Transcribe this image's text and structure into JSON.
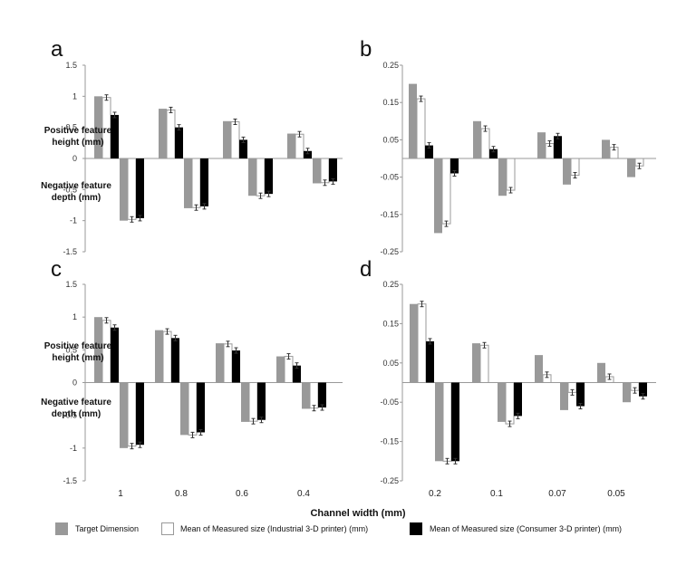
{
  "colors": {
    "target": "#999999",
    "industrial": "#ffffff",
    "consumer": "#000000",
    "axis": "#999999"
  },
  "chart_data": [
    {
      "panel": "a",
      "type": "bar",
      "ylim": [
        -1.5,
        1.5
      ],
      "yticks": [
        "1.5",
        "1",
        "0.5",
        "0",
        "-0.5",
        "-1",
        "-1.5"
      ],
      "categories": [
        "1",
        "0.8",
        "0.6",
        "0.4"
      ],
      "series": [
        {
          "name": "Target Dimension (positive)",
          "values": [
            1.0,
            0.8,
            0.6,
            0.4
          ]
        },
        {
          "name": "Industrial (positive)",
          "values": [
            0.98,
            0.78,
            0.59,
            0.39
          ]
        },
        {
          "name": "Consumer (positive)",
          "values": [
            0.7,
            0.5,
            0.3,
            0.12
          ]
        },
        {
          "name": "Target Dimension (negative)",
          "values": [
            -1.0,
            -0.8,
            -0.6,
            -0.4
          ]
        },
        {
          "name": "Industrial (negative)",
          "values": [
            -0.98,
            -0.79,
            -0.6,
            -0.39
          ]
        },
        {
          "name": "Consumer (negative)",
          "values": [
            -0.96,
            -0.77,
            -0.57,
            -0.37
          ]
        }
      ]
    },
    {
      "panel": "b",
      "type": "bar",
      "ylim": [
        -0.25,
        0.25
      ],
      "yticks": [
        "0.25",
        "0.15",
        "0.05",
        "-0.05",
        "-0.15",
        "-0.25"
      ],
      "categories": [
        "0.2",
        "0.1",
        "0.07",
        "0.05"
      ],
      "series": [
        {
          "name": "Target Dimension (positive)",
          "values": [
            0.2,
            0.1,
            0.07,
            0.05
          ]
        },
        {
          "name": "Industrial (positive)",
          "values": [
            0.16,
            0.08,
            0.04,
            0.03
          ]
        },
        {
          "name": "Consumer (positive)",
          "values": [
            0.035,
            0.025,
            0.06,
            0.0
          ]
        },
        {
          "name": "Target Dimension (negative)",
          "values": [
            -0.2,
            -0.1,
            -0.07,
            -0.05
          ]
        },
        {
          "name": "Industrial (negative)",
          "values": [
            -0.175,
            -0.085,
            -0.045,
            -0.02
          ]
        },
        {
          "name": "Consumer (negative)",
          "values": [
            -0.04,
            0.0,
            0.0,
            0.0
          ]
        }
      ]
    },
    {
      "panel": "c",
      "type": "bar",
      "ylim": [
        -1.5,
        1.5
      ],
      "yticks": [
        "1.5",
        "1",
        "0.5",
        "0",
        "-0.5",
        "-1",
        "-1.5"
      ],
      "categories": [
        "1",
        "0.8",
        "0.6",
        "0.4"
      ],
      "series": [
        {
          "name": "Target Dimension (positive)",
          "values": [
            1.0,
            0.8,
            0.6,
            0.4
          ]
        },
        {
          "name": "Industrial (positive)",
          "values": [
            0.95,
            0.78,
            0.59,
            0.4
          ]
        },
        {
          "name": "Consumer (positive)",
          "values": [
            0.84,
            0.68,
            0.49,
            0.26
          ]
        },
        {
          "name": "Target Dimension (negative)",
          "values": [
            -1.0,
            -0.8,
            -0.6,
            -0.4
          ]
        },
        {
          "name": "Industrial (negative)",
          "values": [
            -0.97,
            -0.8,
            -0.59,
            -0.39
          ]
        },
        {
          "name": "Consumer (negative)",
          "values": [
            -0.95,
            -0.76,
            -0.57,
            -0.38
          ]
        }
      ]
    },
    {
      "panel": "d",
      "type": "bar",
      "ylim": [
        -0.25,
        0.25
      ],
      "yticks": [
        "0.25",
        "0.15",
        "0.05",
        "-0.05",
        "-0.15",
        "-0.25"
      ],
      "categories": [
        "0.2",
        "0.1",
        "0.07",
        "0.05"
      ],
      "series": [
        {
          "name": "Target Dimension (positive)",
          "values": [
            0.2,
            0.1,
            0.07,
            0.05
          ]
        },
        {
          "name": "Industrial (positive)",
          "values": [
            0.2,
            0.095,
            0.02,
            0.015
          ]
        },
        {
          "name": "Consumer (positive)",
          "values": [
            0.105,
            0.0,
            0.0,
            0.0
          ]
        },
        {
          "name": "Target Dimension (negative)",
          "values": [
            -0.2,
            -0.1,
            -0.07,
            -0.05
          ]
        },
        {
          "name": "Industrial (negative)",
          "values": [
            -0.2,
            -0.105,
            -0.025,
            -0.02
          ]
        },
        {
          "name": "Consumer (negative)",
          "values": [
            -0.2,
            -0.085,
            -0.06,
            -0.035
          ]
        }
      ]
    }
  ],
  "labels": {
    "positive_label": [
      "Positive feature",
      "height (mm)"
    ],
    "negative_label": [
      "Negative feature",
      "depth (mm)"
    ],
    "xtitle": "Channel width (mm)",
    "legend": [
      "Target Dimension",
      "Mean of Measured size (Industrial 3-D printer) (mm)",
      "Mean of Measured size (Consumer 3-D printer) (mm)"
    ]
  }
}
